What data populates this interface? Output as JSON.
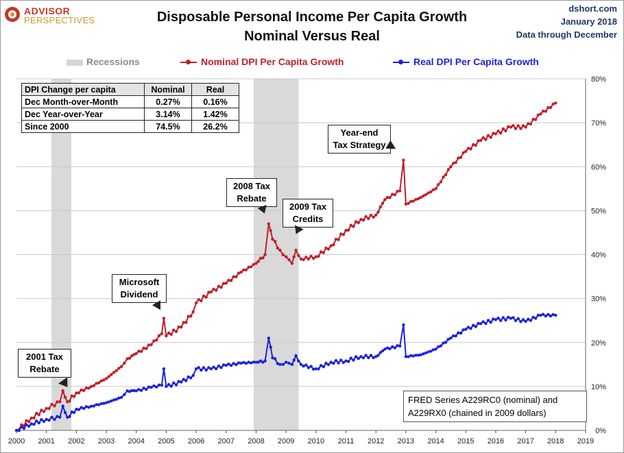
{
  "brand": {
    "line1": "ADVISOR",
    "line2": "PERSPECTIVES"
  },
  "header": {
    "title_line1": "Disposable Personal Income Per Capita Growth",
    "title_line2": "Nominal Versus Real",
    "site": "dshort.com",
    "date": "January 2018",
    "data_note": "Data through December"
  },
  "legend": {
    "recessions": "Recessions",
    "nominal": "Nominal DPI Per Capita Growth",
    "real": "Real DPI Per Capita Growth"
  },
  "stats_table": {
    "headers": [
      "DPI Change per capita",
      "Nominal",
      "Real"
    ],
    "rows": [
      [
        "Dec Month-over-Month",
        "0.27%",
        "0.16%"
      ],
      [
        "Dec Year-over-Year",
        "3.14%",
        "1.42%"
      ],
      [
        "Since 2000",
        "74.5%",
        "26.2%"
      ]
    ]
  },
  "annotations": {
    "tax2001": [
      "2001 Tax",
      "Rebate"
    ],
    "msft": [
      "Microsoft",
      "Dividend"
    ],
    "tax2008": [
      "2008 Tax",
      "Rebate"
    ],
    "tax2009": [
      "2009 Tax",
      "Credits"
    ],
    "yearend": [
      "Year-end",
      "Tax Strategy"
    ]
  },
  "source": [
    "FRED Series A229RC0 (nominal)  and",
    "A229RX0 (chained in 2009 dollars)"
  ],
  "colors": {
    "nominal": "#c0202a",
    "real": "#1c22d8",
    "recession": "#d9d9d9",
    "grid": "#c8c8c8"
  },
  "chart_data": {
    "type": "line",
    "title": "Disposable Personal Income Per Capita Growth Nominal Versus Real",
    "x_range": [
      2000,
      2019
    ],
    "x_ticks": [
      "2000",
      "2001",
      "2002",
      "2003",
      "2004",
      "2005",
      "2006",
      "2007",
      "2008",
      "2009",
      "2010",
      "2011",
      "2012",
      "2013",
      "2014",
      "2015",
      "2016",
      "2017",
      "2018",
      "2019"
    ],
    "y_range": [
      0,
      80
    ],
    "y_ticks": [
      "0%",
      "10%",
      "20%",
      "30%",
      "40%",
      "50%",
      "60%",
      "70%",
      "80%"
    ],
    "recessions": [
      [
        2001.17,
        2001.83
      ],
      [
        2007.92,
        2009.42
      ]
    ],
    "grid": true,
    "series": [
      {
        "name": "Nominal DPI Per Capita Growth",
        "points": [
          [
            2000.0,
            0
          ],
          [
            2000.5,
            2.8
          ],
          [
            2001.0,
            5.0
          ],
          [
            2001.45,
            6.5
          ],
          [
            2001.55,
            9.0
          ],
          [
            2001.7,
            6.5
          ],
          [
            2002.0,
            8.5
          ],
          [
            2002.5,
            10.0
          ],
          [
            2003.0,
            11.8
          ],
          [
            2003.5,
            14.5
          ],
          [
            2003.7,
            16.3
          ],
          [
            2004.0,
            17.5
          ],
          [
            2004.5,
            19.5
          ],
          [
            2004.85,
            22.0
          ],
          [
            2004.92,
            25.5
          ],
          [
            2005.0,
            21.5
          ],
          [
            2005.5,
            23.5
          ],
          [
            2005.9,
            27.0
          ],
          [
            2006.0,
            29.0
          ],
          [
            2006.5,
            31.5
          ],
          [
            2007.0,
            33.5
          ],
          [
            2007.5,
            36.0
          ],
          [
            2008.0,
            38.0
          ],
          [
            2008.3,
            40.0
          ],
          [
            2008.42,
            47.0
          ],
          [
            2008.55,
            43.5
          ],
          [
            2008.8,
            41.0
          ],
          [
            2009.0,
            39.5
          ],
          [
            2009.2,
            38.0
          ],
          [
            2009.33,
            41.0
          ],
          [
            2009.5,
            39.0
          ],
          [
            2010.0,
            39.5
          ],
          [
            2010.5,
            42.0
          ],
          [
            2011.0,
            45.5
          ],
          [
            2011.5,
            48.0
          ],
          [
            2012.0,
            49.0
          ],
          [
            2012.3,
            52.5
          ],
          [
            2012.8,
            54.5
          ],
          [
            2012.92,
            61.5
          ],
          [
            2013.0,
            51.5
          ],
          [
            2013.5,
            53.0
          ],
          [
            2014.0,
            55.0
          ],
          [
            2014.5,
            60.0
          ],
          [
            2015.0,
            63.5
          ],
          [
            2015.5,
            66.0
          ],
          [
            2016.0,
            67.5
          ],
          [
            2016.5,
            69.0
          ],
          [
            2017.0,
            69.0
          ],
          [
            2017.5,
            72.0
          ],
          [
            2018.0,
            74.5
          ]
        ]
      },
      {
        "name": "Real DPI Per Capita Growth",
        "points": [
          [
            2000.0,
            0
          ],
          [
            2000.5,
            1.5
          ],
          [
            2001.0,
            2.5
          ],
          [
            2001.45,
            3.0
          ],
          [
            2001.55,
            5.5
          ],
          [
            2001.7,
            3.0
          ],
          [
            2002.0,
            4.8
          ],
          [
            2002.5,
            5.5
          ],
          [
            2003.0,
            6.3
          ],
          [
            2003.5,
            7.5
          ],
          [
            2003.7,
            9.0
          ],
          [
            2004.0,
            9.0
          ],
          [
            2004.5,
            9.8
          ],
          [
            2004.85,
            10.3
          ],
          [
            2004.92,
            14.0
          ],
          [
            2005.0,
            10.0
          ],
          [
            2005.5,
            11.0
          ],
          [
            2005.9,
            12.5
          ],
          [
            2006.0,
            14.0
          ],
          [
            2006.5,
            14.0
          ],
          [
            2007.0,
            14.8
          ],
          [
            2007.5,
            15.3
          ],
          [
            2008.0,
            15.5
          ],
          [
            2008.3,
            15.8
          ],
          [
            2008.42,
            21.0
          ],
          [
            2008.55,
            16.5
          ],
          [
            2008.8,
            15.0
          ],
          [
            2009.0,
            15.5
          ],
          [
            2009.2,
            15.0
          ],
          [
            2009.33,
            17.0
          ],
          [
            2009.5,
            15.0
          ],
          [
            2010.0,
            14.0
          ],
          [
            2010.5,
            15.5
          ],
          [
            2011.0,
            15.8
          ],
          [
            2011.5,
            16.8
          ],
          [
            2012.0,
            16.8
          ],
          [
            2012.3,
            18.5
          ],
          [
            2012.8,
            19.2
          ],
          [
            2012.92,
            24.0
          ],
          [
            2013.0,
            16.8
          ],
          [
            2013.5,
            17.2
          ],
          [
            2014.0,
            18.5
          ],
          [
            2014.5,
            21.0
          ],
          [
            2015.0,
            23.0
          ],
          [
            2015.5,
            24.3
          ],
          [
            2016.0,
            25.2
          ],
          [
            2016.5,
            25.5
          ],
          [
            2017.0,
            24.8
          ],
          [
            2017.5,
            26.2
          ],
          [
            2018.0,
            26.2
          ]
        ]
      }
    ]
  }
}
